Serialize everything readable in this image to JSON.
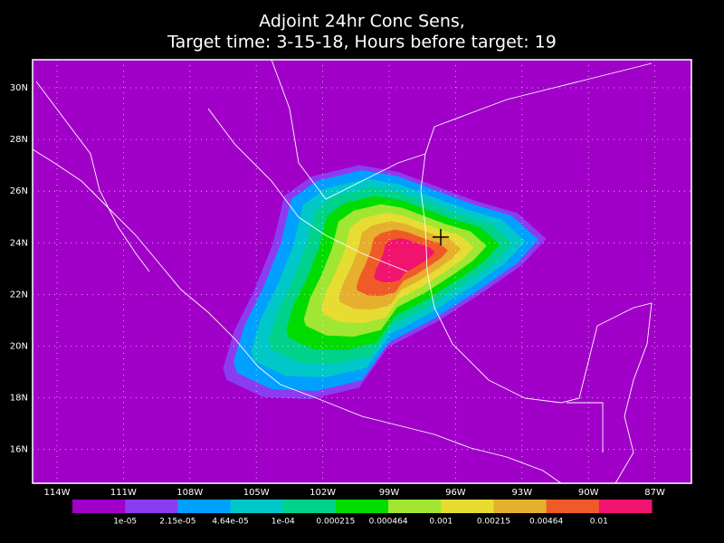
{
  "title": [
    "Adjoint 24hr Conc Sens,",
    "Target time: 3-15-18, Hours before target: 19"
  ],
  "lat_labels": [
    "30N",
    "28N",
    "26N",
    "24N",
    "22N",
    "20N",
    "18N",
    "16N"
  ],
  "lon_labels": [
    "114W",
    "111W",
    "108W",
    "105W",
    "102W",
    "99W",
    "96W",
    "93W",
    "90W",
    "87W"
  ],
  "colorbar": {
    "colors": [
      "#a000c8",
      "#8c3cf0",
      "#00a0ff",
      "#00c8c8",
      "#00d28c",
      "#00dc00",
      "#a0e632",
      "#e6dc32",
      "#e6af2d",
      "#f05a28",
      "#f0146e"
    ],
    "labels": [
      "1e-05",
      "2.15e-05",
      "4.64e-05",
      "1e-04",
      "0.000215",
      "0.000464",
      "0.001",
      "0.00215",
      "0.00464",
      "0.01"
    ]
  }
}
